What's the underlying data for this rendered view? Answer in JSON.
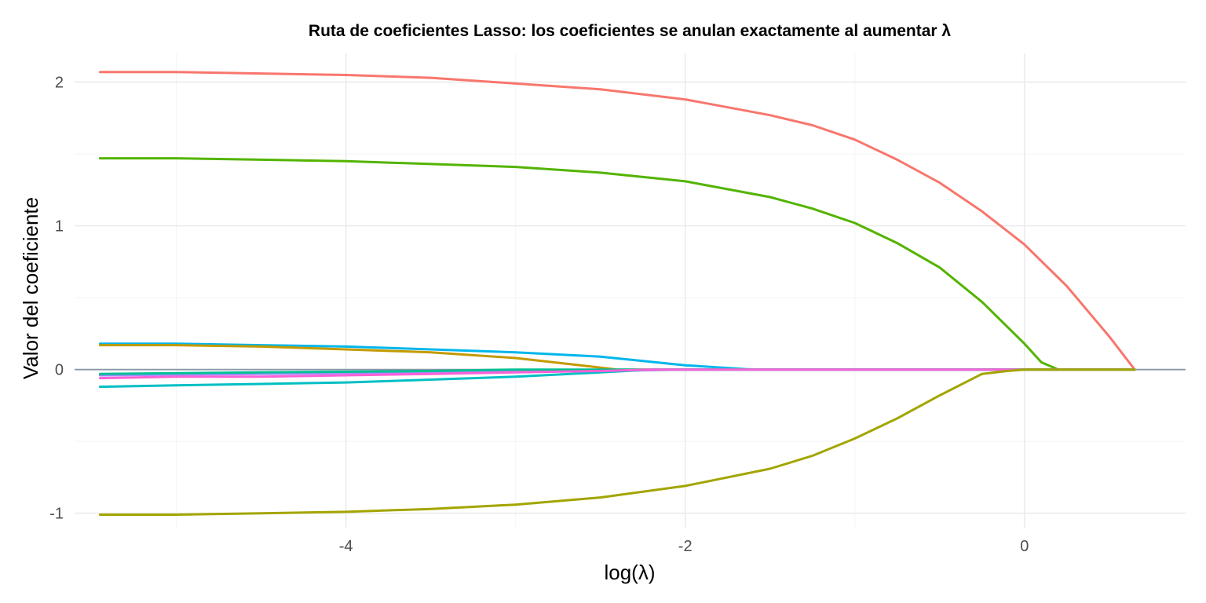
{
  "chart_data": {
    "type": "line",
    "title": "Ruta de coeficientes Lasso: los coeficientes se anulan exactamente al aumentar λ",
    "xlabel": "log(λ)",
    "ylabel": "Valor del coeficiente",
    "xlim": [
      -5.6,
      0.95
    ],
    "ylim": [
      -1.1,
      2.2
    ],
    "x_ticks": [
      -4,
      -2,
      0
    ],
    "x_tick_labels": [
      "-4",
      "-2",
      "0"
    ],
    "y_ticks": [
      -1,
      0,
      1,
      2
    ],
    "y_tick_labels": [
      "-1",
      "0",
      "1",
      "2"
    ],
    "grid": true,
    "zero_reference_line": 0,
    "legend": "none",
    "series": [
      {
        "color": "#F8766D",
        "x": [
          -5.45,
          -5,
          -4.5,
          -4,
          -3.5,
          -3,
          -2.5,
          -2,
          -1.5,
          -1.25,
          -1,
          -0.75,
          -0.5,
          -0.25,
          0,
          0.25,
          0.5,
          0.65
        ],
        "y": [
          2.07,
          2.07,
          2.06,
          2.05,
          2.03,
          1.99,
          1.95,
          1.88,
          1.77,
          1.7,
          1.6,
          1.46,
          1.3,
          1.1,
          0.87,
          0.58,
          0.23,
          0.0
        ]
      },
      {
        "color": "#53B400",
        "x": [
          -5.45,
          -5,
          -4.5,
          -4,
          -3.5,
          -3,
          -2.5,
          -2,
          -1.5,
          -1.25,
          -1,
          -0.75,
          -0.5,
          -0.25,
          0,
          0.1,
          0.2
        ],
        "y": [
          1.47,
          1.47,
          1.46,
          1.45,
          1.43,
          1.41,
          1.37,
          1.31,
          1.2,
          1.12,
          1.02,
          0.88,
          0.71,
          0.47,
          0.18,
          0.05,
          0.0
        ]
      },
      {
        "color": "#A58AFF",
        "x": [
          -5.45,
          -4.5,
          -3.5,
          -2.5,
          -2,
          0.65
        ],
        "y": [
          -0.04,
          -0.03,
          -0.02,
          -0.01,
          0.0,
          0.0
        ]
      },
      {
        "color": "#00B6EB",
        "x": [
          -5.45,
          -5,
          -4.5,
          -4,
          -3.5,
          -3,
          -2.5,
          -2,
          -1.6,
          0.65
        ],
        "y": [
          0.18,
          0.18,
          0.17,
          0.16,
          0.14,
          0.12,
          0.09,
          0.03,
          0.0,
          0.0
        ]
      },
      {
        "color": "#C49A00",
        "x": [
          -5.45,
          -5,
          -4.5,
          -4,
          -3.5,
          -3,
          -2.7,
          -2.4,
          0.65
        ],
        "y": [
          0.17,
          0.17,
          0.16,
          0.14,
          0.12,
          0.08,
          0.04,
          0.0,
          0.0
        ]
      },
      {
        "color": "#00C094",
        "x": [
          -5.45,
          -4.5,
          -3.5,
          -3,
          0.65
        ],
        "y": [
          -0.03,
          -0.02,
          -0.01,
          0.0,
          0.0
        ]
      },
      {
        "color": "#00BFC4",
        "x": [
          -5.45,
          -5,
          -4.5,
          -4,
          -3.5,
          -3,
          -2.5,
          -2.2,
          0.65
        ],
        "y": [
          -0.12,
          -0.11,
          -0.1,
          -0.09,
          -0.07,
          -0.05,
          -0.02,
          0.0,
          0.0
        ]
      },
      {
        "color": "#FB61D7",
        "x": [
          -5.45,
          -5,
          -4.5,
          -4,
          -3.5,
          -3,
          -2.5,
          -2.2,
          0.65
        ],
        "y": [
          -0.06,
          -0.05,
          -0.05,
          -0.04,
          -0.03,
          -0.02,
          -0.01,
          0.0,
          0.0
        ]
      },
      {
        "color": "#A3A500",
        "x": [
          -5.45,
          -5,
          -4.5,
          -4,
          -3.5,
          -3,
          -2.5,
          -2,
          -1.5,
          -1.25,
          -1,
          -0.75,
          -0.5,
          -0.25,
          -0.1,
          0,
          0.65
        ],
        "y": [
          -1.01,
          -1.01,
          -1.0,
          -0.99,
          -0.97,
          -0.94,
          -0.89,
          -0.81,
          -0.69,
          -0.6,
          -0.48,
          -0.34,
          -0.18,
          -0.03,
          -0.01,
          0.0,
          0.0
        ]
      }
    ]
  }
}
